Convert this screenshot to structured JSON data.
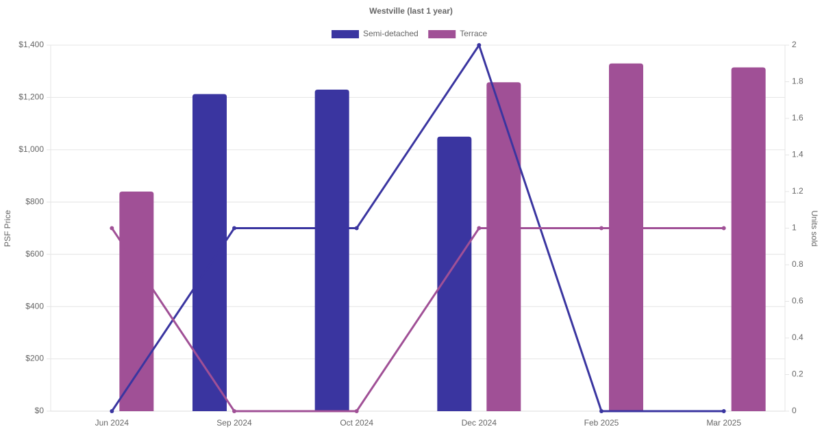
{
  "chart_data": {
    "type": "bar-line",
    "title": "Westville (last 1 year)",
    "y_label": "PSF Price",
    "y2_label": "Units sold",
    "categories": [
      "Jun 2024",
      "Sep 2024",
      "Oct 2024",
      "Dec 2024",
      "Feb 2025",
      "Mar 2025"
    ],
    "series": [
      {
        "name": "Semi-detached",
        "color": "#3a35a0",
        "values": [
          null,
          1213,
          1230,
          1050,
          null,
          null
        ],
        "units": [
          0,
          1,
          1,
          2,
          0,
          0
        ]
      },
      {
        "name": "Terrace",
        "color": "#a05096",
        "values": [
          840,
          null,
          null,
          1258,
          1330,
          1315
        ],
        "units": [
          1,
          0,
          0,
          1,
          1,
          1
        ]
      }
    ],
    "ylim": [
      0,
      1400
    ],
    "yticks": [
      {
        "value": 0,
        "label": "$0"
      },
      {
        "value": 200,
        "label": "$200"
      },
      {
        "value": 400,
        "label": "$400"
      },
      {
        "value": 600,
        "label": "$600"
      },
      {
        "value": 800,
        "label": "$800"
      },
      {
        "value": 1000,
        "label": "$1,000"
      },
      {
        "value": 1200,
        "label": "$1,200"
      },
      {
        "value": 1400,
        "label": "$1,400"
      }
    ],
    "y2lim": [
      0,
      2
    ],
    "y2ticks": [
      0,
      0.2,
      0.4,
      0.6,
      0.8,
      1,
      1.2,
      1.4,
      1.6,
      1.8,
      2
    ],
    "grid": true
  }
}
